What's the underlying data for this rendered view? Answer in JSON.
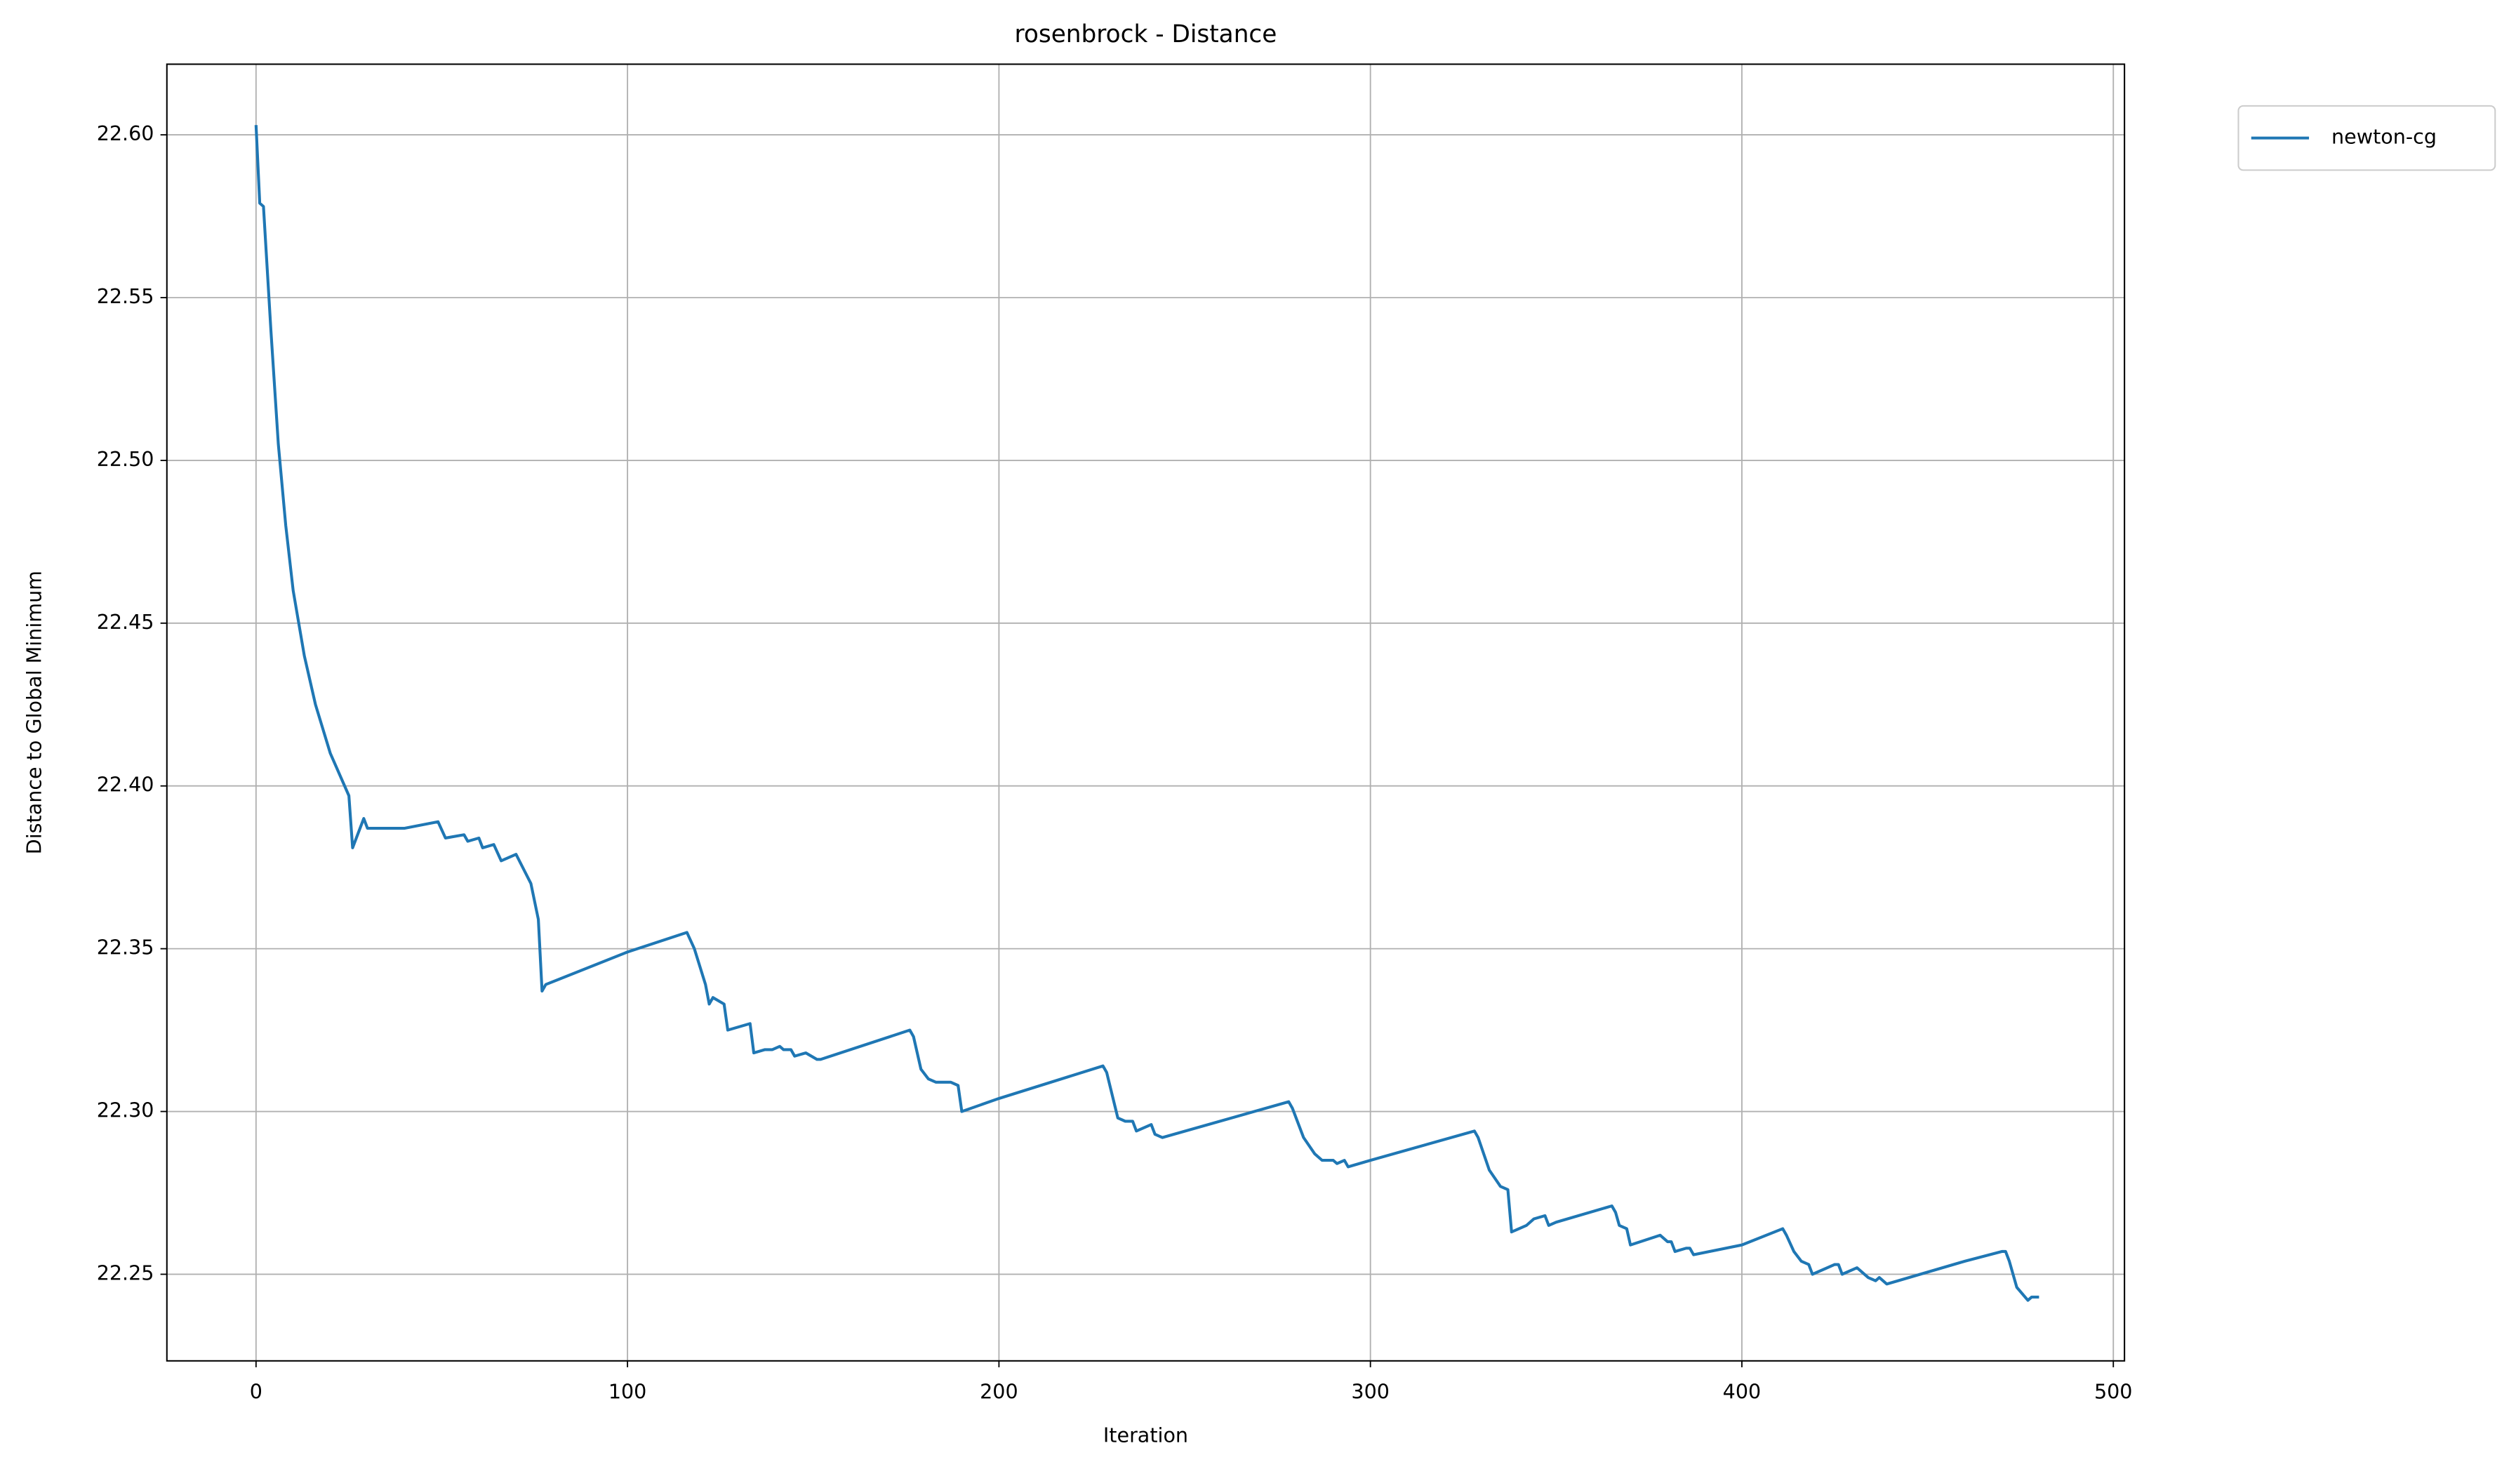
{
  "chart_data": {
    "type": "line",
    "title": "rosenbrock - Distance",
    "x_label": "Iteration",
    "y_label": "Distance to Global Minimum",
    "xlim": [
      -24,
      503
    ],
    "ylim": [
      22.2234,
      22.6217
    ],
    "xticks": [
      0,
      100,
      200,
      300,
      400,
      500
    ],
    "yticks": [
      22.25,
      {
        "value": 22.3,
        "label": "22.30"
      },
      22.35,
      {
        "value": 22.4,
        "label": "22.40"
      },
      22.45,
      {
        "value": 22.5,
        "label": "22.50"
      },
      22.55,
      {
        "value": 22.6,
        "label": "22.60"
      }
    ],
    "grid": true,
    "legend": "outside-upper-right",
    "series": [
      {
        "name": "newton-cg",
        "color": "#1f77b4",
        "x": [
          0,
          1,
          2,
          4,
          6,
          8,
          10,
          13,
          16,
          20,
          25,
          26,
          29,
          30,
          40,
          49,
          51,
          56,
          57,
          60,
          61,
          64,
          66,
          70,
          74,
          76,
          77,
          78,
          100,
          116,
          118,
          121,
          122,
          123,
          126,
          127,
          133,
          134,
          137,
          139,
          141,
          142,
          144,
          145,
          148,
          151,
          152,
          176,
          177,
          179,
          181,
          183,
          185,
          187,
          189,
          190,
          200,
          228,
          229,
          232,
          234,
          236,
          237,
          241,
          242,
          244,
          278,
          279,
          282,
          285,
          287,
          290,
          291,
          293,
          294,
          300,
          328,
          329,
          332,
          335,
          337,
          338,
          342,
          344,
          347,
          348,
          350,
          365,
          366,
          367,
          369,
          370,
          378,
          380,
          381,
          382,
          385,
          386,
          387,
          400,
          411,
          412,
          414,
          416,
          418,
          419,
          425,
          426,
          427,
          431,
          432,
          434,
          436,
          437,
          438,
          439,
          442,
          460,
          470,
          471,
          472,
          474,
          477,
          478,
          480
        ],
        "values": [
          22.603,
          22.579,
          22.578,
          22.54,
          22.505,
          22.48,
          22.46,
          22.44,
          22.425,
          22.41,
          22.397,
          22.381,
          22.39,
          22.387,
          22.387,
          22.389,
          22.384,
          22.385,
          22.383,
          22.384,
          22.381,
          22.382,
          22.377,
          22.379,
          22.37,
          22.359,
          22.337,
          22.339,
          22.349,
          22.355,
          22.35,
          22.339,
          22.333,
          22.335,
          22.333,
          22.325,
          22.327,
          22.318,
          22.319,
          22.319,
          22.32,
          22.319,
          22.319,
          22.317,
          22.318,
          22.316,
          22.316,
          22.325,
          22.323,
          22.313,
          22.31,
          22.309,
          22.309,
          22.309,
          22.308,
          22.3,
          22.304,
          22.314,
          22.312,
          22.298,
          22.297,
          22.297,
          22.294,
          22.296,
          22.293,
          22.292,
          22.303,
          22.301,
          22.292,
          22.287,
          22.285,
          22.285,
          22.284,
          22.285,
          22.283,
          22.285,
          22.294,
          22.292,
          22.282,
          22.277,
          22.276,
          22.263,
          22.265,
          22.267,
          22.268,
          22.265,
          22.266,
          22.271,
          22.269,
          22.265,
          22.264,
          22.259,
          22.262,
          22.26,
          22.26,
          22.257,
          22.258,
          22.258,
          22.256,
          22.259,
          22.264,
          22.262,
          22.257,
          22.254,
          22.253,
          22.25,
          22.253,
          22.253,
          22.25,
          22.252,
          22.251,
          22.249,
          22.248,
          22.249,
          22.248,
          22.247,
          22.248,
          22.254,
          22.257,
          22.257,
          22.254,
          22.246,
          22.242,
          22.243,
          22.243
        ]
      }
    ]
  }
}
